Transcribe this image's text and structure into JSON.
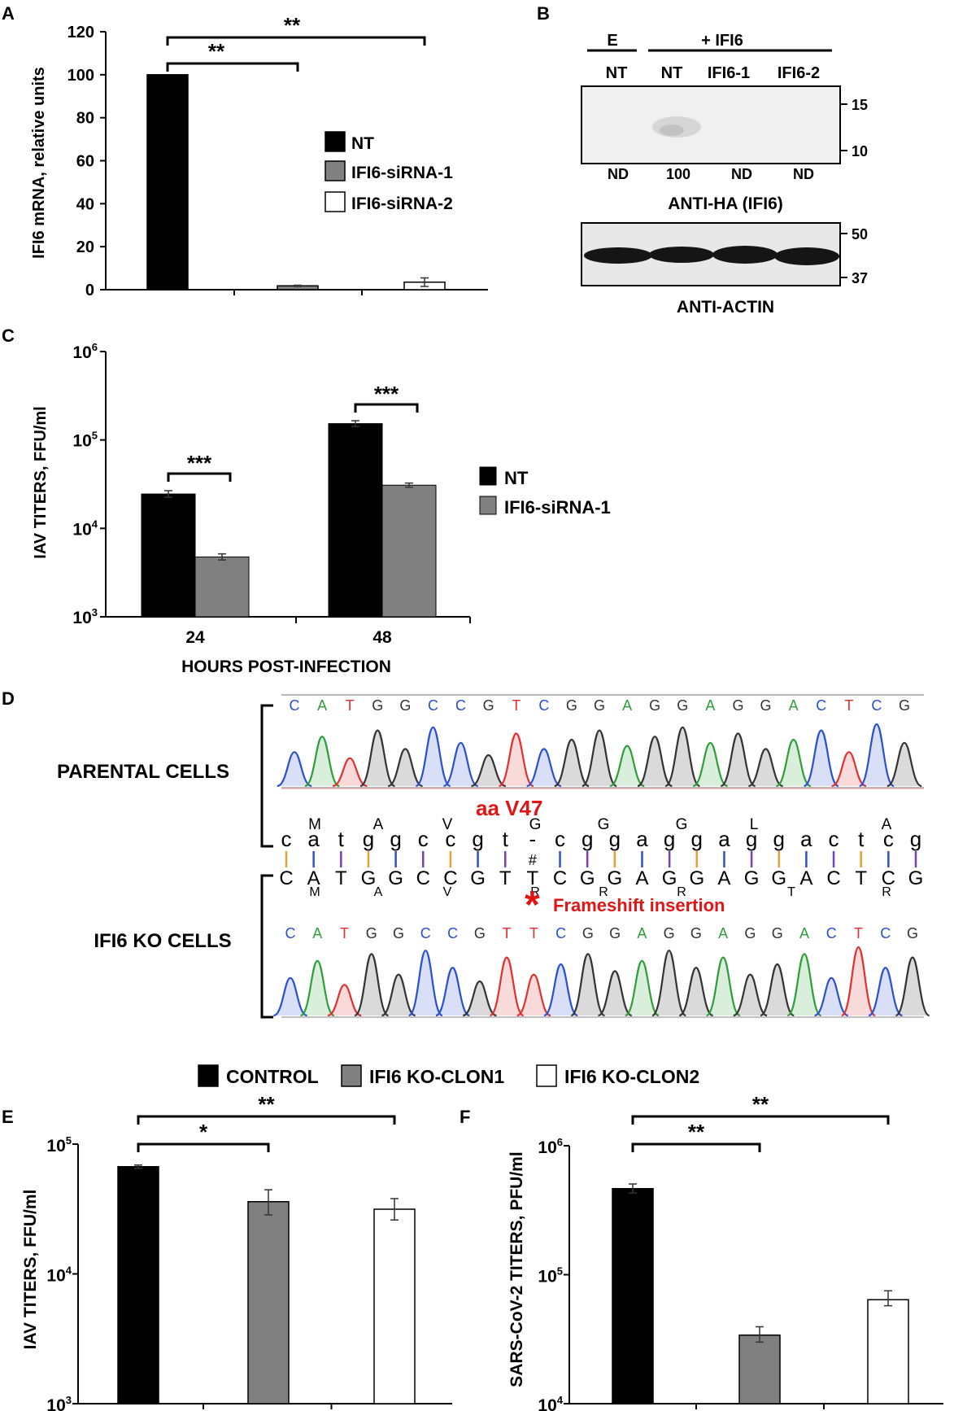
{
  "panels": {
    "a": "A",
    "b": "B",
    "c": "C",
    "d": "D",
    "e": "E",
    "f": "F"
  },
  "chart_data": [
    {
      "id": "A",
      "type": "bar",
      "ylabel": "IFI6 mRNA, relative units",
      "ylim": [
        0,
        120
      ],
      "yticks": [
        0,
        20,
        40,
        60,
        80,
        100,
        120
      ],
      "series": [
        {
          "name": "NT",
          "value": 100,
          "error": 0,
          "color": "#000000"
        },
        {
          "name": "IFI6-siRNA-1",
          "value": 1.8,
          "error": 0.3,
          "color": "#808080"
        },
        {
          "name": "IFI6-siRNA-2",
          "value": 3.5,
          "error": 2.0,
          "color": "#ffffff"
        }
      ],
      "significance": [
        {
          "from": 0,
          "to": 1,
          "label": "**"
        },
        {
          "from": 0,
          "to": 2,
          "label": "**"
        }
      ]
    },
    {
      "id": "C",
      "type": "bar",
      "ylabel": "IAV TITERS, FFU/ml",
      "xlabel": "HOURS POST-INFECTION",
      "yscale": "log",
      "ylim": [
        1000,
        1000000
      ],
      "yticks": [
        {
          "base": "10",
          "exp": "3"
        },
        {
          "base": "10",
          "exp": "4"
        },
        {
          "base": "10",
          "exp": "5"
        },
        {
          "base": "10",
          "exp": "6"
        }
      ],
      "categories": [
        "24",
        "48"
      ],
      "series": [
        {
          "name": "NT",
          "color": "#000000",
          "values": [
            24500,
            153000
          ],
          "errors_low": [
            22500,
            142000
          ],
          "errors_high": [
            26700,
            165000
          ]
        },
        {
          "name": "IFI6-siRNA-1",
          "color": "#808080",
          "values": [
            4750,
            30800
          ],
          "errors_low": [
            4400,
            29200
          ],
          "errors_high": [
            5150,
            32600
          ]
        }
      ],
      "significance": [
        {
          "category": 0,
          "label": "***"
        },
        {
          "category": 1,
          "label": "***"
        }
      ]
    },
    {
      "id": "E",
      "type": "bar",
      "ylabel": "IAV TITERS, FFU/ml",
      "yscale": "log",
      "ylim": [
        1000,
        100000
      ],
      "yticks": [
        {
          "base": "10",
          "exp": "3"
        },
        {
          "base": "10",
          "exp": "4"
        },
        {
          "base": "10",
          "exp": "5"
        }
      ],
      "series": [
        {
          "name": "CONTROL",
          "value": 67000,
          "err_low": 65000,
          "err_high": 69000,
          "color": "#000000"
        },
        {
          "name": "IFI6 KO-CLON1",
          "value": 36000,
          "err_low": 28500,
          "err_high": 44500,
          "color": "#808080"
        },
        {
          "name": "IFI6 KO-CLON2",
          "value": 31500,
          "err_low": 26000,
          "err_high": 38000,
          "color": "#ffffff"
        }
      ],
      "significance": [
        {
          "from": 0,
          "to": 1,
          "label": "*"
        },
        {
          "from": 0,
          "to": 2,
          "label": "**"
        }
      ]
    },
    {
      "id": "F",
      "type": "bar",
      "ylabel": "SARS-CoV-2 TITERS, PFU/ml",
      "yscale": "log",
      "ylim": [
        10000,
        1000000
      ],
      "yticks": [
        {
          "base": "10",
          "exp": "4"
        },
        {
          "base": "10",
          "exp": "5"
        },
        {
          "base": "10",
          "exp": "6"
        }
      ],
      "series": [
        {
          "name": "CONTROL",
          "value": 465000,
          "err_low": 430000,
          "err_high": 505000,
          "color": "#000000"
        },
        {
          "name": "IFI6 KO-CLON1",
          "value": 34000,
          "err_low": 30000,
          "err_high": 39500,
          "color": "#808080"
        },
        {
          "name": "IFI6 KO-CLON2",
          "value": 64000,
          "err_low": 57500,
          "err_high": 75000,
          "color": "#ffffff"
        }
      ],
      "significance": [
        {
          "from": 0,
          "to": 1,
          "label": "**"
        },
        {
          "from": 0,
          "to": 2,
          "label": "**"
        }
      ]
    }
  ],
  "legend_ef": [
    "CONTROL",
    "IFI6 KO-CLON1",
    "IFI6 KO-CLON2"
  ],
  "blot": {
    "group_e": "E",
    "group_ifi6": "+ IFI6",
    "lanes": [
      "NT",
      "NT",
      "IFI6-1",
      "IFI6-2"
    ],
    "quant": [
      "ND",
      "100",
      "ND",
      "ND"
    ],
    "top_label": "ANTI-HA (IFI6)",
    "bottom_label": "ANTI-ACTIN",
    "top_markers": [
      "15",
      "10"
    ],
    "bottom_markers": [
      "50",
      "37"
    ]
  },
  "seq": {
    "parental_label": "PARENTAL CELLS",
    "ko_label": "IFI6 KO CELLS",
    "parental_bases": [
      "C",
      "A",
      "T",
      "G",
      "G",
      "C",
      "C",
      "G",
      "T",
      "C",
      "G",
      "G",
      "A",
      "G",
      "G",
      "A",
      "G",
      "G",
      "A",
      "C",
      "T",
      "C",
      "G"
    ],
    "ko_bases": [
      "C",
      "A",
      "T",
      "G",
      "G",
      "C",
      "C",
      "G",
      "T",
      "T",
      "C",
      "G",
      "G",
      "A",
      "G",
      "G",
      "A",
      "G",
      "G",
      "A",
      "C",
      "T",
      "C",
      "G"
    ],
    "aa_top": [
      "M",
      "A",
      "V",
      "G",
      "G",
      "G",
      "L",
      "A"
    ],
    "ref_seq": "catggccgt-cggaggaggactcg",
    "ko_seq": "CATGGCCGTTCGGAGGAGGACTCG",
    "aa_bottom": [
      "M",
      "A",
      "V",
      "R",
      "R",
      "R",
      "T",
      "R"
    ],
    "mutation_label": "aa V47",
    "asterisk": "*",
    "insertion_label": "Frameshift insertion",
    "base_colors": {
      "A": "#2e9e3a",
      "C": "#2a4fd0",
      "G": "#333333",
      "T": "#e03030"
    }
  }
}
